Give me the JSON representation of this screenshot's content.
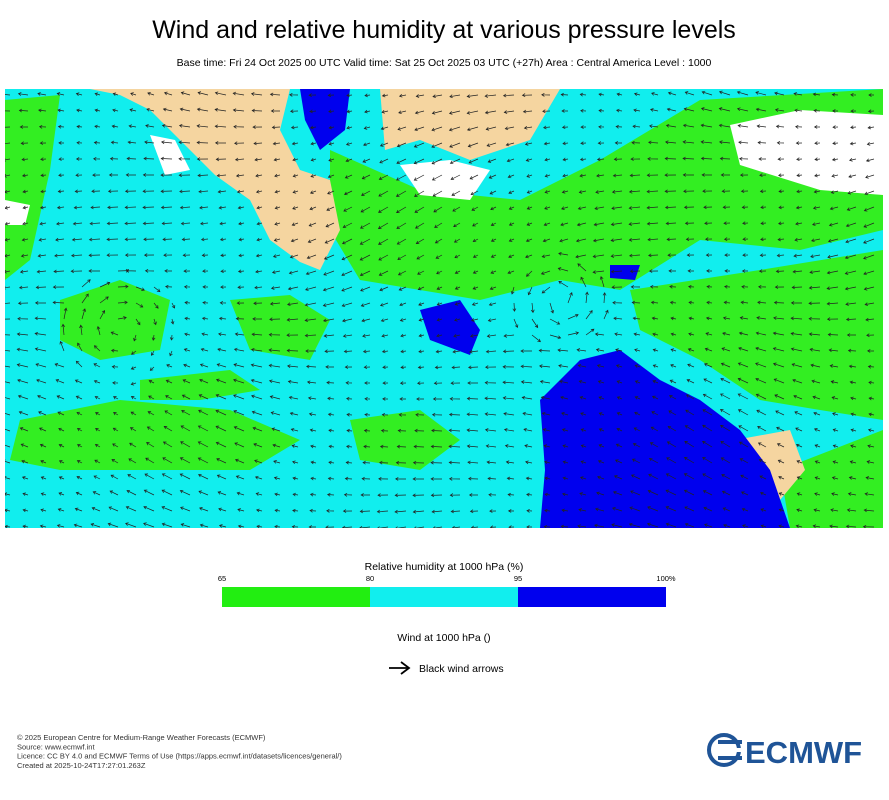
{
  "header": {
    "title": "Wind and relative humidity at various pressure levels",
    "subtitle": "Base time: Fri 24 Oct 2025 00 UTC Valid time: Sat 25 Oct 2025 03 UTC (+27h) Area : Central America Level : 1000"
  },
  "legend": {
    "humidity": {
      "title": "Relative humidity at 1000 hPa (%)",
      "ticks": [
        65,
        80,
        95,
        {
          "value": 100,
          "label": "100%"
        }
      ],
      "colors": [
        "#22ee11",
        "#11eeee",
        "#0000ee"
      ]
    },
    "wind": {
      "title": "Wind at 1000 hPa ()",
      "arrow_label": "Black wind arrows"
    }
  },
  "footer": {
    "lines": [
      "© 2025 European Centre for Medium-Range Weather Forecasts (ECMWF)",
      "Source: www.ecmwf.int",
      "Licence: CC BY 4.0 and ECMWF Terms of Use (https://apps.ecmwf.int/datasets/licences/general/)",
      "Created at 2025-10-24T17:27:01.263Z"
    ]
  },
  "logo": "ECMWF"
}
